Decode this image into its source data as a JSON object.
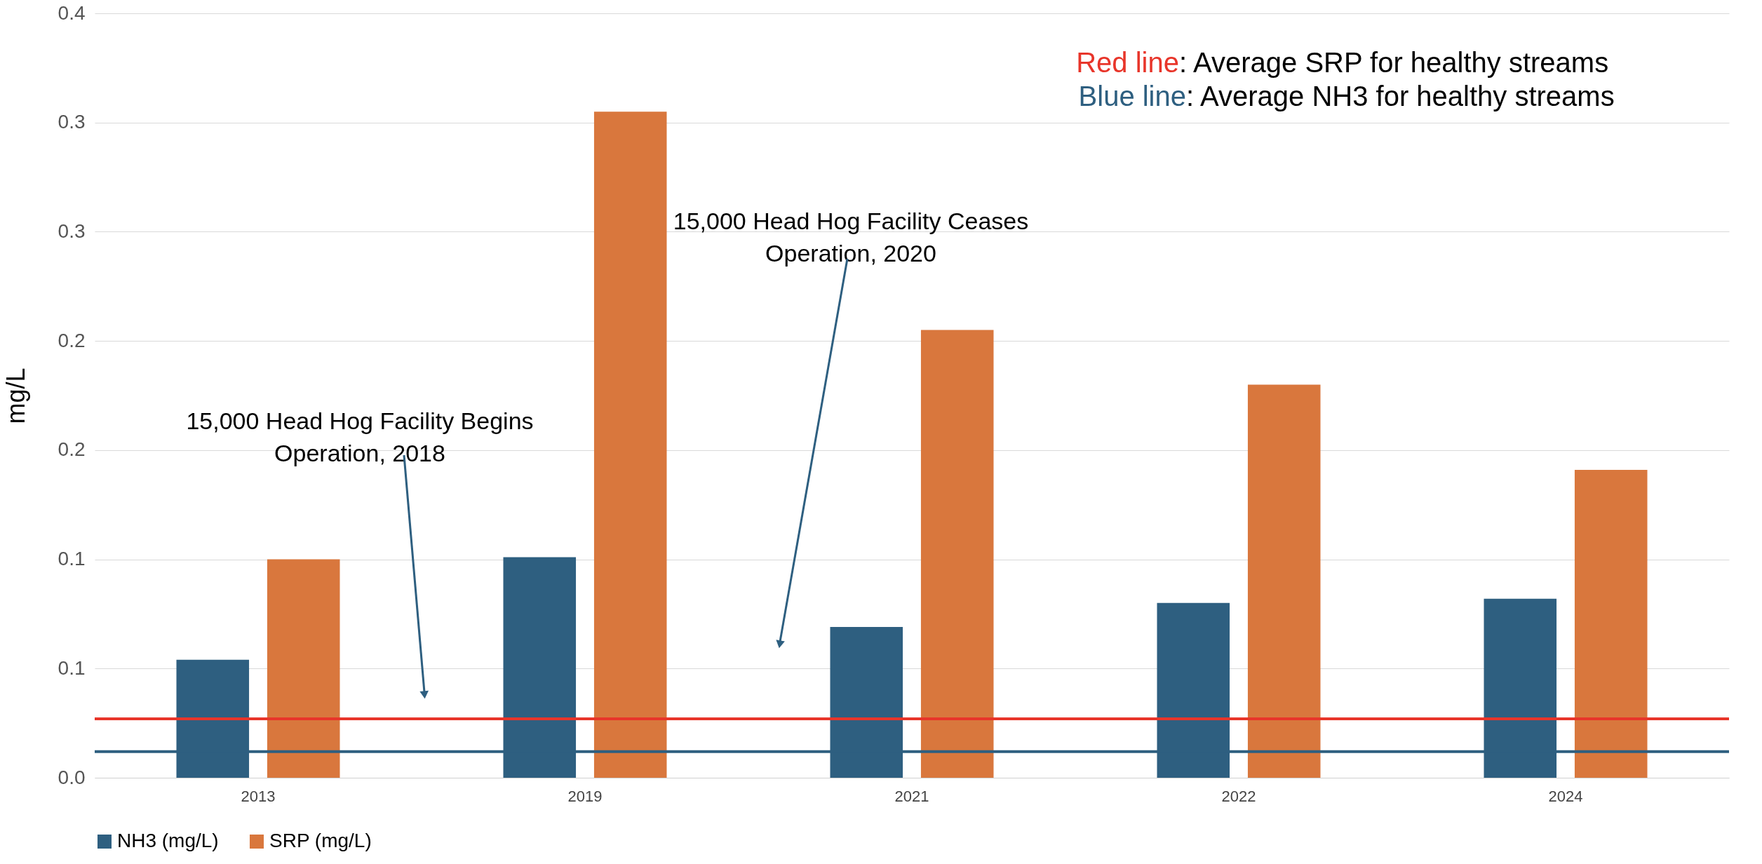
{
  "chart_data": {
    "type": "bar",
    "ylabel": "mg/L",
    "categories": [
      "2013",
      "2019",
      "2021",
      "2022",
      "2024"
    ],
    "series": [
      {
        "name": "NH3 (mg/L)",
        "color": "#2e5f80",
        "values": [
          0.054,
          0.101,
          0.069,
          0.08,
          0.082
        ]
      },
      {
        "name": "SRP (mg/L)",
        "color": "#d9773d",
        "values": [
          0.1,
          0.305,
          0.205,
          0.18,
          0.141
        ]
      }
    ],
    "ylim": [
      0,
      0.35
    ],
    "yticks": [
      {
        "value": 0,
        "label": "0.0"
      },
      {
        "value": 0.05,
        "label": "0.1"
      },
      {
        "value": 0.1,
        "label": "0.1"
      },
      {
        "value": 0.15,
        "label": "0.2"
      },
      {
        "value": 0.2,
        "label": "0.2"
      },
      {
        "value": 0.25,
        "label": "0.3"
      },
      {
        "value": 0.3,
        "label": "0.3"
      },
      {
        "value": 0.35,
        "label": "0.4"
      }
    ],
    "grid": "y",
    "legend": "bottom",
    "ref_lines": [
      {
        "axis": "y",
        "value": 0.027,
        "color": "#e8352a"
      },
      {
        "axis": "y",
        "value": 0.012,
        "color": "#2e5f80"
      }
    ],
    "annotations": [
      "Red line: Average SRP for healthy streams",
      "Blue line: Average NH3 for healthy streams",
      "15,000 Head Hog Facility Begins Operation, 2018",
      "15,000 Head Hog Facility Ceases Operation, 2020"
    ]
  }
}
